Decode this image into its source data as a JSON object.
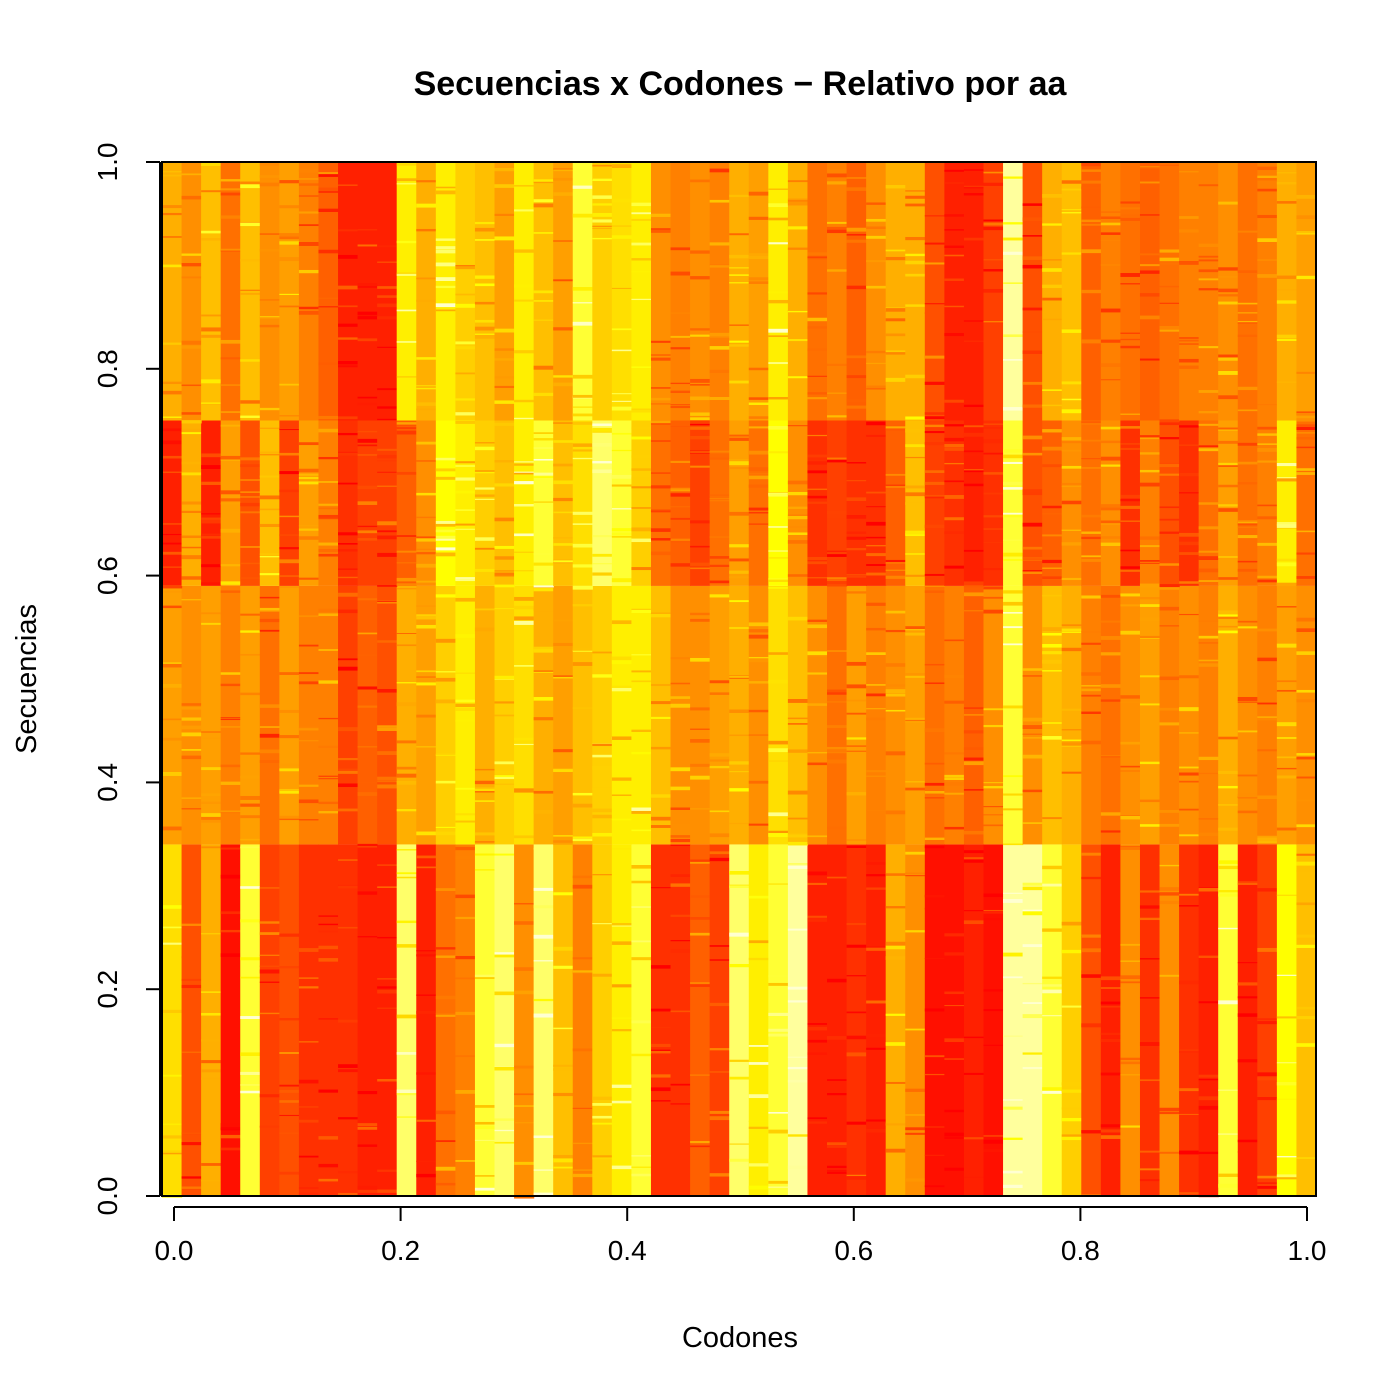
{
  "chart_data": {
    "type": "heatmap",
    "title": "Secuencias x Codones − Relativo por aa",
    "xlabel": "Codones",
    "ylabel": "Secuencias",
    "xlim": [
      0.0,
      1.0
    ],
    "ylim": [
      0.0,
      1.0
    ],
    "x_ticks": [
      "0.0",
      "0.2",
      "0.4",
      "0.6",
      "0.8",
      "1.0"
    ],
    "y_ticks": [
      "0.0",
      "0.2",
      "0.4",
      "0.6",
      "0.8",
      "1.0"
    ],
    "colormap": "heat",
    "colors": {
      "low": "#ff0000",
      "mid": "#ff8c00",
      "high": "#ffff00",
      "max": "#ffffd0"
    },
    "n_columns": 59,
    "row_groups": [
      {
        "y_range": [
          0.0,
          0.34
        ]
      },
      {
        "y_range": [
          0.34,
          0.59
        ]
      },
      {
        "y_range": [
          0.59,
          0.75
        ]
      },
      {
        "y_range": [
          0.75,
          1.0
        ]
      }
    ],
    "values_by_group": [
      [
        0.7,
        0.25,
        0.55,
        0.05,
        0.85,
        0.2,
        0.25,
        0.15,
        0.15,
        0.15,
        0.1,
        0.1,
        0.9,
        0.1,
        0.35,
        0.4,
        0.85,
        0.9,
        0.45,
        0.9,
        0.6,
        0.4,
        0.65,
        0.75,
        0.85,
        0.15,
        0.15,
        0.3,
        0.2,
        0.9,
        0.75,
        0.85,
        0.95,
        0.1,
        0.1,
        0.15,
        0.1,
        0.55,
        0.45,
        0.05,
        0.05,
        0.1,
        0.05,
        0.95,
        0.95,
        0.85,
        0.65,
        0.25,
        0.1,
        0.45,
        0.15,
        0.45,
        0.15,
        0.1,
        0.85,
        0.1,
        0.2,
        0.8,
        0.6
      ],
      [
        0.5,
        0.45,
        0.5,
        0.4,
        0.5,
        0.35,
        0.5,
        0.4,
        0.4,
        0.2,
        0.3,
        0.25,
        0.55,
        0.5,
        0.65,
        0.75,
        0.55,
        0.65,
        0.7,
        0.55,
        0.5,
        0.6,
        0.65,
        0.75,
        0.75,
        0.6,
        0.45,
        0.45,
        0.5,
        0.55,
        0.45,
        0.7,
        0.6,
        0.45,
        0.35,
        0.5,
        0.4,
        0.45,
        0.5,
        0.35,
        0.4,
        0.3,
        0.45,
        0.85,
        0.45,
        0.6,
        0.55,
        0.4,
        0.35,
        0.45,
        0.5,
        0.4,
        0.45,
        0.4,
        0.55,
        0.45,
        0.4,
        0.5,
        0.45
      ],
      [
        0.1,
        0.55,
        0.1,
        0.5,
        0.25,
        0.6,
        0.2,
        0.5,
        0.4,
        0.15,
        0.2,
        0.2,
        0.3,
        0.45,
        0.8,
        0.75,
        0.65,
        0.6,
        0.75,
        0.85,
        0.6,
        0.7,
        0.9,
        0.85,
        0.65,
        0.35,
        0.3,
        0.2,
        0.35,
        0.5,
        0.35,
        0.8,
        0.45,
        0.15,
        0.2,
        0.15,
        0.15,
        0.3,
        0.6,
        0.2,
        0.15,
        0.1,
        0.15,
        0.85,
        0.25,
        0.3,
        0.45,
        0.35,
        0.45,
        0.15,
        0.4,
        0.25,
        0.15,
        0.35,
        0.5,
        0.35,
        0.4,
        0.75,
        0.35
      ],
      [
        0.55,
        0.45,
        0.6,
        0.35,
        0.6,
        0.45,
        0.5,
        0.4,
        0.3,
        0.1,
        0.1,
        0.1,
        0.75,
        0.55,
        0.75,
        0.65,
        0.6,
        0.5,
        0.75,
        0.6,
        0.5,
        0.85,
        0.65,
        0.7,
        0.75,
        0.45,
        0.4,
        0.45,
        0.4,
        0.55,
        0.5,
        0.75,
        0.55,
        0.35,
        0.4,
        0.3,
        0.45,
        0.55,
        0.55,
        0.25,
        0.1,
        0.1,
        0.2,
        0.95,
        0.25,
        0.55,
        0.6,
        0.3,
        0.4,
        0.35,
        0.3,
        0.35,
        0.4,
        0.4,
        0.45,
        0.35,
        0.4,
        0.55,
        0.5
      ]
    ]
  }
}
